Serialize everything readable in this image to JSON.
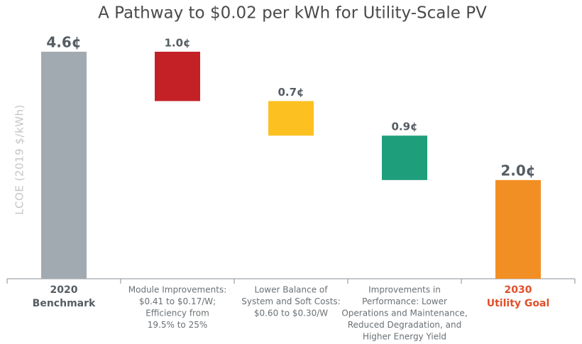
{
  "chart_data": {
    "type": "waterfall",
    "title": "A Pathway to $0.02 per kWh for Utility-Scale PV",
    "y_label": "LCOE (2019 $/kWh)",
    "categories": [
      [
        "2020",
        "Benchmark"
      ],
      [
        "Module Improvements:",
        "$0.41 to $0.17/W;",
        "Efficiency from",
        "19.5% to 25%"
      ],
      [
        "Lower Balance of",
        "System and Soft Costs:",
        "$0.60 to $0.30/W"
      ],
      [
        "Improvements in",
        "Performance: Lower",
        "Operations and Maintenance,",
        "Reduced Degradation, and",
        "Higher Energy Yield"
      ],
      [
        "2030",
        "Utility Goal"
      ]
    ],
    "measures": [
      "total",
      "decrease",
      "decrease",
      "decrease",
      "total"
    ],
    "values": [
      4.6,
      1.0,
      0.7,
      0.9,
      2.0
    ],
    "value_labels": [
      "4.6¢",
      "1.0¢",
      "0.7¢",
      "0.9¢",
      "2.0¢"
    ],
    "colors": [
      "#a2aab1",
      "#c42127",
      "#fcc020",
      "#1f9e7c",
      "#f28f24"
    ],
    "ylim": [
      0,
      4.8
    ]
  }
}
